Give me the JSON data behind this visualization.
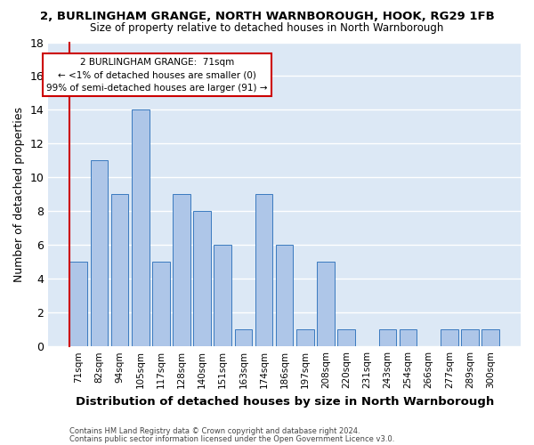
{
  "title1": "2, BURLINGHAM GRANGE, NORTH WARNBOROUGH, HOOK, RG29 1FB",
  "title2": "Size of property relative to detached houses in North Warnborough",
  "xlabel": "Distribution of detached houses by size in North Warnborough",
  "ylabel": "Number of detached properties",
  "categories": [
    "71sqm",
    "82sqm",
    "94sqm",
    "105sqm",
    "117sqm",
    "128sqm",
    "140sqm",
    "151sqm",
    "163sqm",
    "174sqm",
    "186sqm",
    "197sqm",
    "208sqm",
    "220sqm",
    "231sqm",
    "243sqm",
    "254sqm",
    "266sqm",
    "277sqm",
    "289sqm",
    "300sqm"
  ],
  "values": [
    5,
    11,
    9,
    14,
    5,
    9,
    8,
    6,
    1,
    9,
    6,
    1,
    5,
    1,
    0,
    1,
    1,
    0,
    1,
    1,
    1
  ],
  "bar_color": "#aec6e8",
  "bar_edge_color": "#3a7abf",
  "highlight_line_color": "#cc0000",
  "annotation_line1": "2 BURLINGHAM GRANGE:  71sqm",
  "annotation_line2": "← <1% of detached houses are smaller (0)",
  "annotation_line3": "99% of semi-detached houses are larger (91) →",
  "annotation_box_color": "#ffffff",
  "annotation_box_edge": "#cc0000",
  "background_color": "#dce8f5",
  "grid_color": "#ffffff",
  "footer1": "Contains HM Land Registry data © Crown copyright and database right 2024.",
  "footer2": "Contains public sector information licensed under the Open Government Licence v3.0.",
  "ylim": [
    0,
    18
  ],
  "yticks": [
    0,
    2,
    4,
    6,
    8,
    10,
    12,
    14,
    16,
    18
  ]
}
